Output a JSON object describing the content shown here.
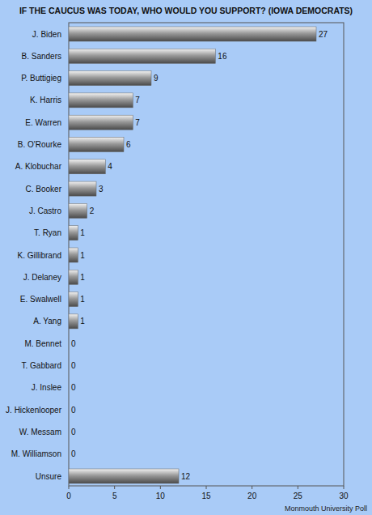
{
  "chart_data": {
    "type": "bar",
    "orientation": "horizontal",
    "title": "IF THE CAUCUS WAS TODAY, WHO WOULD YOU SUPPORT? (IOWA DEMOCRATS)",
    "source": "Monmouth University Poll",
    "categories": [
      "J. Biden",
      "B. Sanders",
      "P. Buttigieg",
      "K. Harris",
      "E. Warren",
      "B. O'Rourke",
      "A. Klobuchar",
      "C. Booker",
      "J. Castro",
      "T. Ryan",
      "K. Gillibrand",
      "J. Delaney",
      "E. Swalwell",
      "A. Yang",
      "M. Bennet",
      "T. Gabbard",
      "J. Inslee",
      "J. Hickenlooper",
      "W. Messam",
      "M. Williamson",
      "Unsure"
    ],
    "values": [
      27,
      16,
      9,
      7,
      7,
      6,
      4,
      3,
      2,
      1,
      1,
      1,
      1,
      1,
      0,
      0,
      0,
      0,
      0,
      0,
      12
    ],
    "color": "#9a9a9a",
    "xlim": [
      0,
      30
    ],
    "xticks": [
      0,
      5,
      10,
      15,
      20,
      25,
      30
    ],
    "grid": false,
    "data_labels": true
  }
}
